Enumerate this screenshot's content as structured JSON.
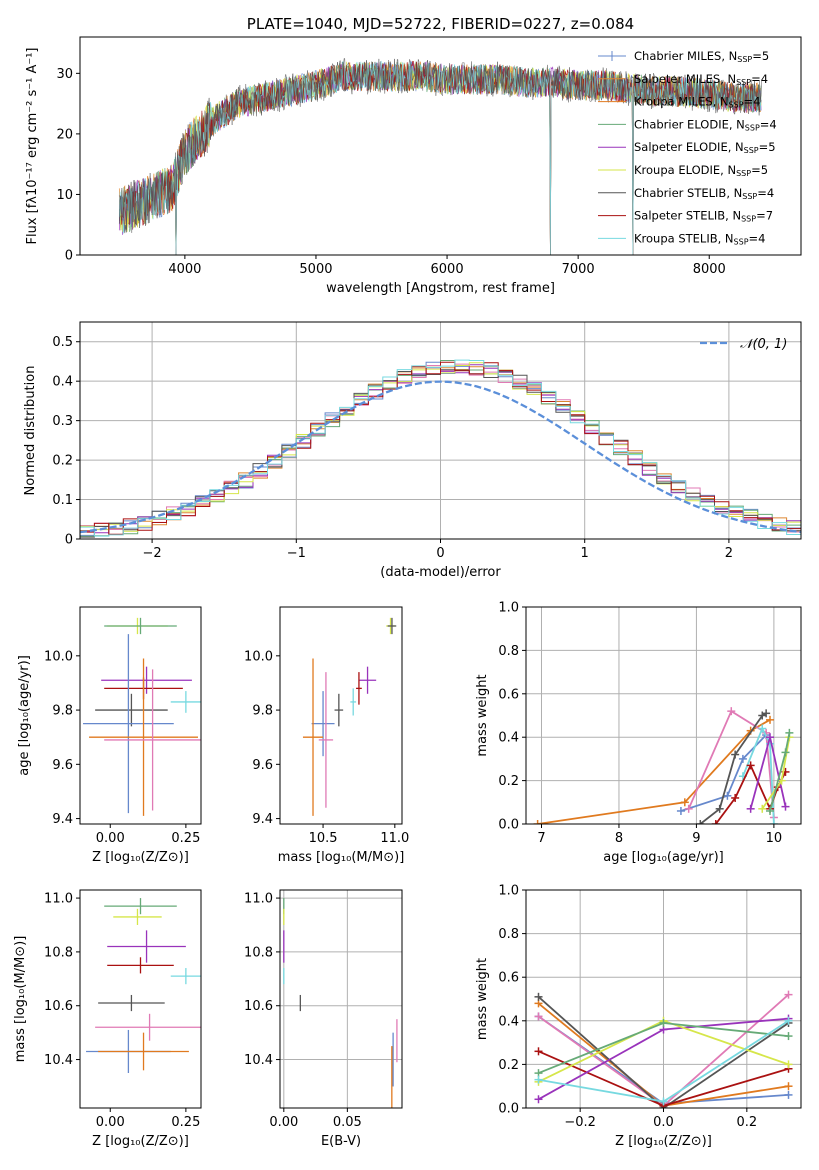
{
  "colors": {
    "chabrier_miles": "#6688cc",
    "salpeter_miles": "#dd8833",
    "kroupa_miles": "#e07a1f",
    "chabrier_elodie": "#66aa77",
    "salpeter_elodie": "#9933bb",
    "kroupa_elodie": "#d6e64a",
    "chabrier_stelib": "#555555",
    "salpeter_stelib": "#aa1111",
    "kroupa_stelib": "#77d9e0",
    "pink": "#e07ab5",
    "gauss": "#5b8fd9",
    "grid": "#b0b0b0"
  },
  "chart_data": [
    {
      "id": "spectrum",
      "type": "line",
      "title": "PLATE=1040, MJD=52722, FIBERID=0227, z=0.084",
      "xlabel": "wavelength [Angstrom, rest frame]",
      "ylabel": "Flux [fλ10⁻¹⁷ erg cm⁻² s⁻¹ A⁻¹]",
      "xlim": [
        3200,
        8700
      ],
      "ylim": [
        0,
        36
      ],
      "xticks": [
        4000,
        5000,
        6000,
        7000,
        8000
      ],
      "yticks": [
        0,
        10,
        20,
        30
      ],
      "grid": false,
      "legend_position": "top-right",
      "legend": [
        {
          "label": "Chabrier MILES, N",
          "sub": "SSP",
          "tail": "=5",
          "color": "chabrier_miles"
        },
        {
          "label": "Salpeter MILES, N",
          "sub": "SSP",
          "tail": "=4",
          "color": "salpeter_miles"
        },
        {
          "label": "Kroupa MILES, N",
          "sub": "SSP",
          "tail": "=4",
          "color": "kroupa_miles"
        },
        {
          "label": "Chabrier ELODIE, N",
          "sub": "SSP",
          "tail": "=4",
          "color": "chabrier_elodie"
        },
        {
          "label": "Salpeter ELODIE, N",
          "sub": "SSP",
          "tail": "=5",
          "color": "salpeter_elodie"
        },
        {
          "label": "Kroupa ELODIE, N",
          "sub": "SSP",
          "tail": "=5",
          "color": "kroupa_elodie"
        },
        {
          "label": "Chabrier STELIB, N",
          "sub": "SSP",
          "tail": "=4",
          "color": "chabrier_stelib"
        },
        {
          "label": "Salpeter STELIB, N",
          "sub": "SSP",
          "tail": "=7",
          "color": "salpeter_stelib"
        },
        {
          "label": "Kroupa STELIB, N",
          "sub": "SSP",
          "tail": "=4",
          "color": "kroupa_stelib"
        }
      ],
      "continuum": [
        [
          3500,
          7
        ],
        [
          3700,
          9
        ],
        [
          3900,
          11
        ],
        [
          4000,
          17
        ],
        [
          4200,
          22
        ],
        [
          4400,
          25
        ],
        [
          4600,
          26
        ],
        [
          4800,
          27
        ],
        [
          5000,
          28
        ],
        [
          5200,
          29.5
        ],
        [
          5400,
          29.5
        ],
        [
          5600,
          29.5
        ],
        [
          5800,
          29.5
        ],
        [
          6000,
          29
        ],
        [
          6200,
          29
        ],
        [
          6400,
          29
        ],
        [
          6600,
          28.5
        ],
        [
          6800,
          28.5
        ],
        [
          7000,
          28
        ],
        [
          7200,
          28
        ],
        [
          7400,
          27.5
        ],
        [
          7600,
          27
        ],
        [
          7800,
          27
        ],
        [
          8000,
          26.5
        ],
        [
          8200,
          26
        ],
        [
          8400,
          26
        ]
      ],
      "dips": [
        {
          "x": 3930,
          "y": 0
        },
        {
          "x": 6790,
          "y": 0
        },
        {
          "x": 7420,
          "y": 0
        }
      ]
    },
    {
      "id": "residuals",
      "type": "histogram",
      "xlabel": "(data-model)/error",
      "ylabel": "Normed distribution",
      "xlim": [
        -2.5,
        2.5
      ],
      "ylim": [
        0,
        0.55
      ],
      "xticks": [
        -2,
        -1,
        0,
        1,
        2
      ],
      "yticks": [
        0,
        0.1,
        0.2,
        0.3,
        0.4,
        0.5
      ],
      "grid": true,
      "legend_label": "𝒩(0, 1)",
      "legend_position": "top-right",
      "bin_width": 0.1
    },
    {
      "id": "age_z",
      "type": "errorbar",
      "xlabel": "Z [log₁₀(Z/Z⊙)]",
      "ylabel": "age  [log₁₀(age/yr)]",
      "xlim": [
        -0.1,
        0.3
      ],
      "ylim": [
        9.38,
        10.18
      ],
      "xticks": [
        0,
        0.25
      ],
      "xticklabels": [
        "0.00",
        "0.25"
      ],
      "yticks": [
        9.4,
        9.6,
        9.8,
        10.0
      ],
      "yticklabels": [
        "9.4",
        "9.6",
        "9.8",
        "10.0"
      ],
      "grid": false,
      "points": [
        {
          "x": 0.09,
          "xerr": 0.1,
          "y": 10.11,
          "yerr": 0.03,
          "color": "kroupa_elodie"
        },
        {
          "x": 0.1,
          "xerr": 0.12,
          "y": 10.11,
          "yerr": 0.03,
          "color": "chabrier_elodie"
        },
        {
          "x": 0.12,
          "xerr": 0.15,
          "y": 9.91,
          "yerr": 0.05,
          "color": "salpeter_elodie"
        },
        {
          "x": 0.11,
          "xerr": 0.13,
          "y": 9.88,
          "yerr": 0.04,
          "color": "salpeter_stelib"
        },
        {
          "x": 0.25,
          "xerr": 0.05,
          "y": 9.83,
          "yerr": 0.04,
          "color": "kroupa_stelib"
        },
        {
          "x": 0.07,
          "xerr": 0.12,
          "y": 9.8,
          "yerr": 0.06,
          "color": "chabrier_stelib"
        },
        {
          "x": 0.06,
          "xerr": 0.15,
          "y": 9.75,
          "yerr": 0.33,
          "color": "chabrier_miles"
        },
        {
          "x": 0.11,
          "xerr": 0.18,
          "y": 9.7,
          "yerr": 0.29,
          "color": "kroupa_miles"
        },
        {
          "x": 0.14,
          "xerr": 0.16,
          "y": 9.69,
          "yerr": 0.26,
          "color": "pink"
        }
      ]
    },
    {
      "id": "age_mass",
      "type": "errorbar",
      "xlabel": "mass [log₁₀(M/M⊙)]",
      "xlim": [
        10.2,
        11.05
      ],
      "ylim": [
        9.38,
        10.18
      ],
      "xticks": [
        10.5,
        11.0
      ],
      "xticklabels": [
        "10.5",
        "11.0"
      ],
      "yticks": [
        9.4,
        9.6,
        9.8,
        10.0
      ],
      "yticklabels": [
        "9.4",
        "9.6",
        "9.8",
        "10.0"
      ],
      "grid": false,
      "points": [
        {
          "x": 10.97,
          "xerr": 0.03,
          "y": 10.11,
          "yerr": 0.03,
          "color": "kroupa_elodie"
        },
        {
          "x": 10.98,
          "xerr": 0.03,
          "y": 10.11,
          "yerr": 0.03,
          "color": "chabrier_stelib"
        },
        {
          "x": 10.81,
          "xerr": 0.06,
          "y": 9.91,
          "yerr": 0.05,
          "color": "salpeter_elodie"
        },
        {
          "x": 10.75,
          "xerr": 0.02,
          "y": 9.88,
          "yerr": 0.06,
          "color": "salpeter_stelib"
        },
        {
          "x": 10.71,
          "xerr": 0.02,
          "y": 9.83,
          "yerr": 0.05,
          "color": "kroupa_stelib"
        },
        {
          "x": 10.61,
          "xerr": 0.03,
          "y": 9.8,
          "yerr": 0.06,
          "color": "chabrier_stelib"
        },
        {
          "x": 10.5,
          "xerr": 0.08,
          "y": 9.75,
          "yerr": 0.12,
          "color": "chabrier_miles"
        },
        {
          "x": 10.43,
          "xerr": 0.07,
          "y": 9.7,
          "yerr": 0.29,
          "color": "kroupa_miles"
        },
        {
          "x": 10.52,
          "xerr": 0.05,
          "y": 9.69,
          "yerr": 0.25,
          "color": "pink"
        }
      ]
    },
    {
      "id": "weight_age",
      "type": "line",
      "xlabel": "age  [log₁₀(age/yr)]",
      "ylabel": "mass weight",
      "xlim": [
        6.8,
        10.35
      ],
      "ylim": [
        0,
        1.0
      ],
      "xticks": [
        7,
        8,
        9,
        10
      ],
      "xticklabels": [
        "7",
        "8",
        "9",
        "10"
      ],
      "yticks": [
        0,
        0.2,
        0.4,
        0.6,
        0.8,
        1.0
      ],
      "yticklabels": [
        "0.0",
        "0.2",
        "0.4",
        "0.6",
        "0.8",
        "1.0"
      ],
      "grid": true,
      "series": [
        {
          "color": "kroupa_miles",
          "x": [
            6.95,
            8.85,
            9.7,
            9.95
          ],
          "y": [
            0.0,
            0.1,
            0.43,
            0.48
          ]
        },
        {
          "color": "chabrier_miles",
          "x": [
            8.8,
            9.4,
            9.6,
            9.9
          ],
          "y": [
            0.06,
            0.13,
            0.3,
            0.41
          ]
        },
        {
          "color": "pink",
          "x": [
            8.9,
            9.45,
            9.9,
            10.0
          ],
          "y": [
            0.07,
            0.52,
            0.42,
            0.03
          ]
        },
        {
          "color": "chabrier_stelib",
          "x": [
            9.05,
            9.3,
            9.5,
            9.85,
            9.9
          ],
          "y": [
            0.0,
            0.07,
            0.32,
            0.5,
            0.51
          ]
        },
        {
          "color": "kroupa_stelib",
          "x": [
            9.6,
            9.85,
            9.95,
            10.0
          ],
          "y": [
            0.22,
            0.44,
            0.37,
            0.0
          ]
        },
        {
          "color": "salpeter_stelib",
          "x": [
            9.25,
            9.5,
            9.7,
            9.95,
            10.05,
            10.15
          ],
          "y": [
            0.0,
            0.12,
            0.27,
            0.07,
            0.17,
            0.24
          ]
        },
        {
          "color": "salpeter_elodie",
          "x": [
            9.7,
            9.95,
            10.15
          ],
          "y": [
            0.07,
            0.4,
            0.08
          ]
        },
        {
          "color": "kroupa_elodie",
          "x": [
            9.85,
            10.1,
            10.2
          ],
          "y": [
            0.07,
            0.2,
            0.4
          ]
        },
        {
          "color": "chabrier_elodie",
          "x": [
            9.95,
            10.15,
            10.2
          ],
          "y": [
            0.06,
            0.33,
            0.42
          ]
        }
      ]
    },
    {
      "id": "mass_z",
      "type": "errorbar",
      "xlabel": "Z [log₁₀(Z/Z⊙)]",
      "ylabel": "mass [log₁₀(M/M⊙)]",
      "xlim": [
        -0.1,
        0.3
      ],
      "ylim": [
        10.22,
        11.03
      ],
      "xticks": [
        0,
        0.25
      ],
      "xticklabels": [
        "0.00",
        "0.25"
      ],
      "yticks": [
        10.4,
        10.6,
        10.8,
        11.0
      ],
      "yticklabels": [
        "10.4",
        "10.6",
        "10.8",
        "11.0"
      ],
      "grid": false,
      "points": [
        {
          "x": 0.1,
          "xerr": 0.12,
          "y": 10.97,
          "yerr": 0.03,
          "color": "chabrier_elodie"
        },
        {
          "x": 0.09,
          "xerr": 0.08,
          "y": 10.93,
          "yerr": 0.03,
          "color": "kroupa_elodie"
        },
        {
          "x": 0.12,
          "xerr": 0.13,
          "y": 10.82,
          "yerr": 0.06,
          "color": "salpeter_elodie"
        },
        {
          "x": 0.1,
          "xerr": 0.11,
          "y": 10.75,
          "yerr": 0.03,
          "color": "salpeter_stelib"
        },
        {
          "x": 0.25,
          "xerr": 0.05,
          "y": 10.71,
          "yerr": 0.03,
          "color": "kroupa_stelib"
        },
        {
          "x": 0.07,
          "xerr": 0.11,
          "y": 10.61,
          "yerr": 0.03,
          "color": "chabrier_stelib"
        },
        {
          "x": 0.13,
          "xerr": 0.18,
          "y": 10.52,
          "yerr": 0.05,
          "color": "pink"
        },
        {
          "x": 0.06,
          "xerr": 0.14,
          "y": 10.43,
          "yerr": 0.08,
          "color": "chabrier_miles"
        },
        {
          "x": 0.11,
          "xerr": 0.15,
          "y": 10.43,
          "yerr": 0.07,
          "color": "kroupa_miles"
        }
      ]
    },
    {
      "id": "mass_ebv",
      "type": "errorbar",
      "xlabel": "E(B-V)",
      "xlim": [
        -0.003,
        0.093
      ],
      "ylim": [
        10.22,
        11.03
      ],
      "xticks": [
        0,
        0.05
      ],
      "xticklabels": [
        "0.00",
        "0.05"
      ],
      "yticks": [
        10.4,
        10.6,
        10.8,
        11.0
      ],
      "yticklabels": [
        "10.4",
        "10.6",
        "10.8",
        "11.0"
      ],
      "grid": true,
      "points": [
        {
          "x": 0.0,
          "xerr": 0.0,
          "y": 10.97,
          "yerr": 0.03,
          "color": "chabrier_elodie"
        },
        {
          "x": 0.0,
          "xerr": 0.0,
          "y": 10.93,
          "yerr": 0.03,
          "color": "kroupa_elodie"
        },
        {
          "x": 0.0,
          "xerr": 0.0,
          "y": 10.82,
          "yerr": 0.06,
          "color": "salpeter_elodie"
        },
        {
          "x": 0.0,
          "xerr": 0.0,
          "y": 10.71,
          "yerr": 0.03,
          "color": "kroupa_stelib"
        },
        {
          "x": 0.013,
          "xerr": 0.0,
          "y": 10.61,
          "yerr": 0.03,
          "color": "chabrier_stelib"
        },
        {
          "x": 0.089,
          "xerr": 0.0,
          "y": 10.47,
          "yerr": 0.08,
          "color": "pink"
        },
        {
          "x": 0.086,
          "xerr": 0.0,
          "y": 10.4,
          "yerr": 0.1,
          "color": "chabrier_miles"
        },
        {
          "x": 0.085,
          "xerr": 0.0,
          "y": 10.33,
          "yerr": 0.12,
          "color": "kroupa_miles"
        }
      ]
    },
    {
      "id": "weight_z",
      "type": "line",
      "xlabel": "Z [log₁₀(Z/Z⊙)]",
      "ylabel": "mass weight",
      "xlim": [
        -0.33,
        0.33
      ],
      "ylim": [
        0,
        1.0
      ],
      "xticks": [
        -0.2,
        0,
        0.2
      ],
      "xticklabels": [
        "−0.2",
        "0.0",
        "0.2"
      ],
      "yticks": [
        0,
        0.2,
        0.4,
        0.6,
        0.8,
        1.0
      ],
      "yticklabels": [
        "0.0",
        "0.2",
        "0.4",
        "0.6",
        "0.8",
        "1.0"
      ],
      "grid": true,
      "series": [
        {
          "color": "chabrier_miles",
          "x": [
            -0.3,
            0.0,
            0.3
          ],
          "y": [
            0.42,
            0.02,
            0.06
          ]
        },
        {
          "color": "kroupa_miles",
          "x": [
            -0.3,
            0.0,
            0.3
          ],
          "y": [
            0.48,
            0.01,
            0.1
          ]
        },
        {
          "color": "pink",
          "x": [
            -0.3,
            0.0,
            0.3
          ],
          "y": [
            0.42,
            0.01,
            0.52
          ]
        },
        {
          "color": "chabrier_stelib",
          "x": [
            -0.3,
            0.0,
            0.3
          ],
          "y": [
            0.51,
            0.0,
            0.39
          ]
        },
        {
          "color": "salpeter_stelib",
          "x": [
            -0.3,
            0.0,
            0.3
          ],
          "y": [
            0.26,
            0.01,
            0.18
          ]
        },
        {
          "color": "salpeter_elodie",
          "x": [
            -0.3,
            0.0,
            0.3
          ],
          "y": [
            0.04,
            0.36,
            0.41
          ]
        },
        {
          "color": "kroupa_elodie",
          "x": [
            -0.3,
            0.0,
            0.3
          ],
          "y": [
            0.12,
            0.4,
            0.2
          ]
        },
        {
          "color": "chabrier_elodie",
          "x": [
            -0.3,
            0.0,
            0.3
          ],
          "y": [
            0.16,
            0.39,
            0.33
          ]
        },
        {
          "color": "kroupa_stelib",
          "x": [
            -0.3,
            0.0,
            0.3
          ],
          "y": [
            0.13,
            0.03,
            0.4
          ]
        }
      ]
    }
  ]
}
